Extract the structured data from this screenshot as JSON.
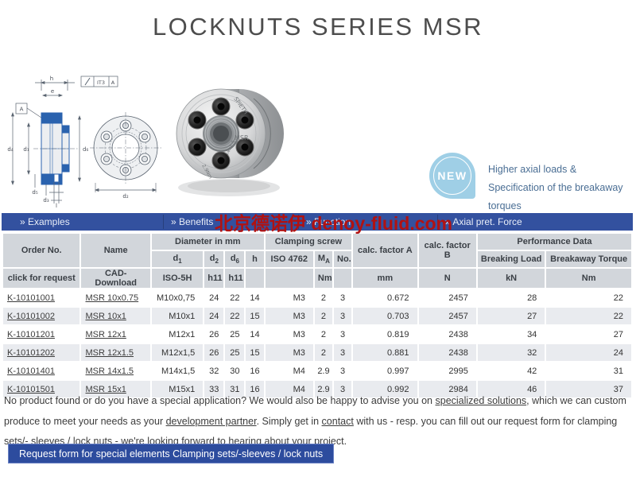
{
  "title": "LOCKNUTS SERIES MSR",
  "badge": {
    "label": "NEW",
    "line1": "Higher axial loads &",
    "line2": "Specification of the breakaway torques"
  },
  "watermark": {
    "text": "北京德诺伊 denoy-fluid.com",
    "color": "#b11212"
  },
  "nav": {
    "tabs": [
      {
        "label": "» Examples"
      },
      {
        "label": "» Benefits"
      },
      {
        "label": "» Function"
      },
      {
        "label": "» Axial pret. Force"
      }
    ]
  },
  "drawing": {
    "labels": {
      "h": "h",
      "e": "e",
      "datum": "A",
      "tolerance": "IT3",
      "tolerance_datum": "A",
      "d4": "d₄",
      "d1": "d₁",
      "d6": "d₆",
      "d5": "d₅",
      "d3": "d₃",
      "l": "l",
      "d2": "d₂"
    }
  },
  "photo": {
    "engravings": {
      "brand": "SPIETH",
      "series": "MSR",
      "size": "14x1.5",
      "torque": "2.9Nm"
    }
  },
  "table": {
    "groups": {
      "diameter": "Diameter in mm",
      "clamping": "Clamping screw",
      "factor_a": "calc. factor A",
      "factor_b": "calc. factor B",
      "performance": "Performance Data"
    },
    "headers": {
      "order_no": "Order No.",
      "name": "Name",
      "d1": {
        "base": "d",
        "sub": "1"
      },
      "d2": {
        "base": "d",
        "sub": "2"
      },
      "d6": {
        "base": "d",
        "sub": "6"
      },
      "h": "h",
      "iso4762": "ISO 4762",
      "ma": {
        "base": "M",
        "sub": "A"
      },
      "no": "No.",
      "breaking_load": "Breaking Load",
      "breakaway_torque": "Breakaway Torque"
    },
    "units": {
      "order_no": "click for request",
      "name": "CAD-Download",
      "d1": "ISO-5H",
      "d2": "h11",
      "d6": "h11",
      "h": "",
      "iso4762": "",
      "ma": "Nm",
      "no": "",
      "factor_a": "mm",
      "factor_b": "N",
      "breaking_load": "kN",
      "breakaway_torque": "Nm"
    },
    "rows": [
      [
        "K-10101001",
        "MSR 10x0.75",
        "M10x0,75",
        "24",
        "22",
        "14",
        "M3",
        "2",
        "3",
        "0.672",
        "2457",
        "28",
        "22"
      ],
      [
        "K-10101002",
        "MSR 10x1",
        "M10x1",
        "24",
        "22",
        "15",
        "M3",
        "2",
        "3",
        "0.703",
        "2457",
        "27",
        "22"
      ],
      [
        "K-10101201",
        "MSR 12x1",
        "M12x1",
        "26",
        "25",
        "14",
        "M3",
        "2",
        "3",
        "0.819",
        "2438",
        "34",
        "27"
      ],
      [
        "K-10101202",
        "MSR 12x1.5",
        "M12x1,5",
        "26",
        "25",
        "15",
        "M3",
        "2",
        "3",
        "0.881",
        "2438",
        "32",
        "24"
      ],
      [
        "K-10101401",
        "MSR 14x1.5",
        "M14x1,5",
        "32",
        "30",
        "16",
        "M4",
        "2.9",
        "3",
        "0.997",
        "2995",
        "42",
        "31"
      ],
      [
        "K-10101501",
        "MSR 15x1",
        "M15x1",
        "33",
        "31",
        "16",
        "M4",
        "2.9",
        "3",
        "0.992",
        "2984",
        "46",
        "37"
      ]
    ]
  },
  "footer": {
    "segments": [
      {
        "text": "No product found or do you have a special application? We would also be happy to advise you on ",
        "link": false
      },
      {
        "text": "specialized solutions",
        "link": true
      },
      {
        "text": ", which we can custom produce to meet your needs as your ",
        "link": false
      },
      {
        "text": "development partner",
        "link": true
      },
      {
        "text": ". Simply get in ",
        "link": false
      },
      {
        "text": "contact",
        "link": true
      },
      {
        "text": " with us - resp. you can fill out our request form for clamping sets/- sleeves / lock nuts - we're looking forward to hearing about your project.",
        "link": false
      }
    ]
  },
  "request_button": {
    "label": "Request form for special elements Clamping sets/-sleeves / lock nuts"
  },
  "colors": {
    "navbar": "#33519f",
    "button": "#2d4c9e",
    "badge": "#9fcfe6",
    "header_bg": "#d2d6db",
    "row_alt": "#e9ebef",
    "watermark": "#b11212",
    "drawing_blue": "#2a62ae"
  }
}
